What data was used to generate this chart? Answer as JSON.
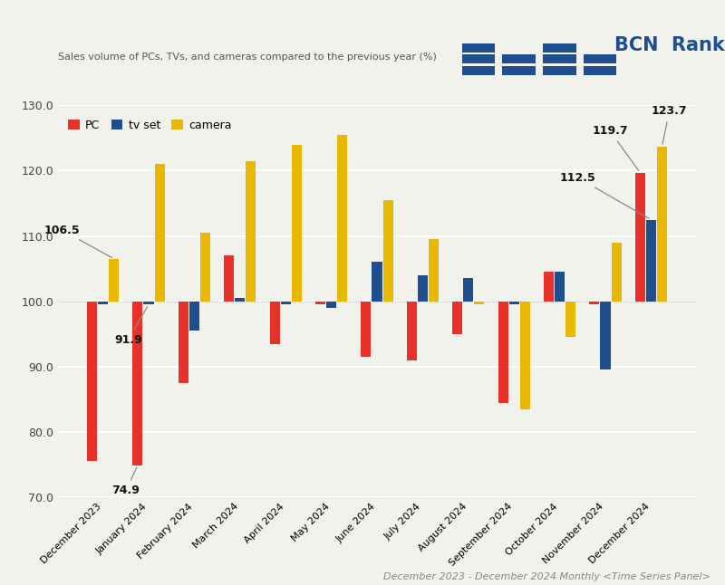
{
  "months": [
    "December 2023",
    "January 2024",
    "February 2024",
    "March 2024",
    "April 2024",
    "May 2024",
    "June 2024",
    "July 2024",
    "August 2024",
    "September 2024",
    "October 2024",
    "November 2024",
    "December 2024"
  ],
  "pc": [
    75.5,
    74.9,
    87.5,
    107.0,
    93.5,
    99.5,
    91.5,
    91.0,
    95.0,
    84.5,
    104.5,
    99.5,
    119.7
  ],
  "tv": [
    99.5,
    99.5,
    95.5,
    100.5,
    99.5,
    99.0,
    106.0,
    104.0,
    103.5,
    99.5,
    104.5,
    89.5,
    112.5
  ],
  "camera": [
    106.5,
    121.0,
    110.5,
    121.5,
    124.0,
    125.5,
    115.5,
    109.5,
    99.5,
    83.5,
    94.5,
    109.0,
    123.7
  ],
  "pc_color": "#e8312a",
  "tv_color": "#1f4e8c",
  "camera_color": "#e8b800",
  "bg_color": "#f2f2ec",
  "title": "Sales volume of PCs, TVs, and cameras compared to the previous year (%)",
  "footer": "December 2023 - December 2024 Monthly <Time Series Panel>",
  "ylim_low": 70.0,
  "ylim_high": 130.0,
  "ytick_labels": [
    "70.0",
    "80.0",
    "90.0",
    "100.0",
    "110.0",
    "120.0",
    "130.0"
  ],
  "ytick_vals": [
    70.0,
    80.0,
    90.0,
    100.0,
    110.0,
    120.0,
    130.0
  ],
  "baseline": 100.0,
  "bar_width": 0.22,
  "logo_color": "#1f4e8c",
  "logo_text": "BCN  Ranking",
  "logo_fontsize": 15,
  "title_fontsize": 8,
  "footer_fontsize": 8,
  "tick_fontsize": 9,
  "annotation_fontsize": 9,
  "legend_fontsize": 9
}
